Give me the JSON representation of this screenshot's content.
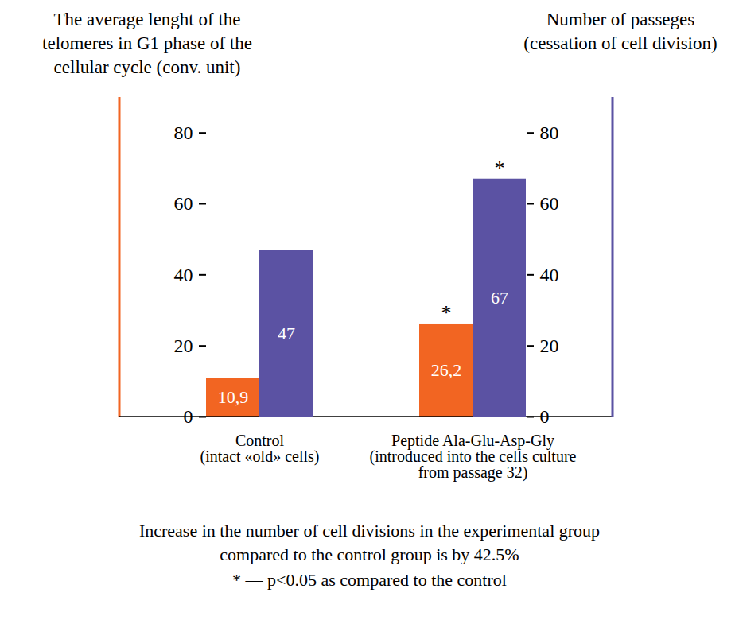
{
  "chart_data": {
    "type": "bar",
    "y_label": "The average lenght of the\ntelomeres in G1 phase of the\ncellular cycle (conv. unit)",
    "y2_label": "Number of passeges\n(cessation of cell division)",
    "categories": [
      "Control\n(intact «old» cells)",
      "Peptide Ala-Glu-Asp-Gly\n(introduced into the cells culture\nfrom passage 32)"
    ],
    "series": [
      {
        "color": "#f26522",
        "values": [
          10.9,
          26.2
        ],
        "value_labels": [
          "10,9",
          "26,2"
        ],
        "significance": [
          null,
          "*"
        ]
      },
      {
        "color": "#5b52a3",
        "values": [
          47,
          67
        ],
        "axis": "y2",
        "significance": [
          null,
          "*"
        ]
      }
    ],
    "ylim": [
      0,
      90
    ],
    "yticks": [
      0,
      20,
      40,
      60,
      80
    ],
    "y2lim": [
      0,
      90
    ],
    "y2ticks": [
      0,
      20,
      40,
      60,
      80
    ],
    "data_labels": true,
    "grid": false,
    "caption": "Increase in the number of cell divisions in the experimental group\ncompared to the control group is by 42.5%",
    "footnote": "* — p<0.05 as compared to the control"
  }
}
